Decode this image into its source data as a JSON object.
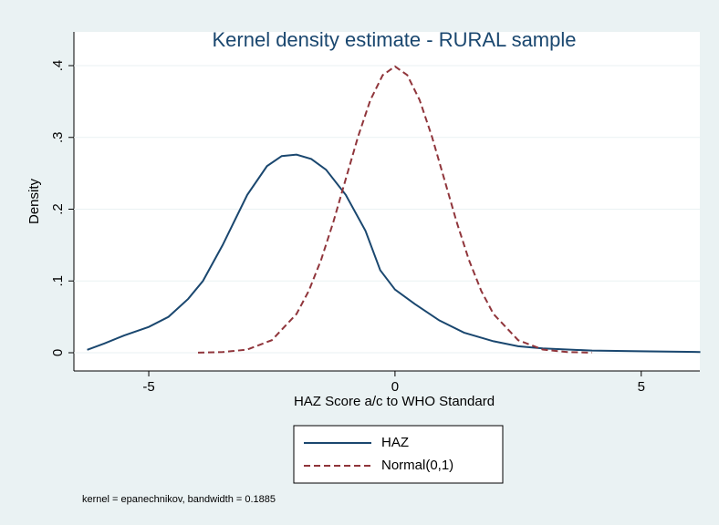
{
  "chart_data": {
    "type": "line",
    "title": "Kernel density estimate - RURAL sample",
    "x_label": "HAZ Score a/c to WHO Standard",
    "y_label": "Density",
    "note": "kernel = epanechnikov, bandwidth = 0.1885",
    "xlim": [
      -6.52,
      6.19
    ],
    "xticks": [
      -5,
      0,
      5
    ],
    "ylim": [
      -0.0254,
      0.447
    ],
    "yticks": [
      0,
      {
        "value": 0.1,
        "label": ".1"
      },
      {
        "value": 0.2,
        "label": ".2"
      },
      {
        "value": 0.3,
        "label": ".3"
      },
      {
        "value": 0.4,
        "label": ".4"
      }
    ],
    "grid": true,
    "legend": "bottom",
    "series": [
      {
        "name": "HAZ",
        "color": "#1a476f",
        "dash": "solid",
        "x": [
          -6.25,
          -5.9,
          -5.5,
          -5,
          -4.6,
          -4.2,
          -3.9,
          -3.5,
          -3.0,
          -2.6,
          -2.3,
          -2.0,
          -1.7,
          -1.4,
          -1.0,
          -0.6,
          -0.3,
          0,
          0.4,
          0.9,
          1.4,
          2.0,
          2.5,
          3.0,
          4.0,
          5.0,
          6.2
        ],
        "values": [
          0.004,
          0.013,
          0.024,
          0.036,
          0.05,
          0.075,
          0.1,
          0.15,
          0.22,
          0.26,
          0.274,
          0.276,
          0.27,
          0.255,
          0.22,
          0.17,
          0.115,
          0.088,
          0.068,
          0.045,
          0.028,
          0.016,
          0.009,
          0.006,
          0.003,
          0.002,
          0.001
        ]
      },
      {
        "name": "Normal(0,1)",
        "color": "#90353b",
        "dash": "dashed",
        "x": [
          -4,
          -3.5,
          -3,
          -2.5,
          -2,
          -1.75,
          -1.5,
          -1.25,
          -1,
          -0.75,
          -0.5,
          -0.25,
          0,
          0.25,
          0.5,
          0.75,
          1,
          1.25,
          1.5,
          1.75,
          2,
          2.5,
          3,
          3.5,
          4
        ],
        "values": [
          0.0001,
          0.0009,
          0.0044,
          0.0175,
          0.054,
          0.0863,
          0.1295,
          0.1826,
          0.242,
          0.3011,
          0.3521,
          0.3867,
          0.3989,
          0.3867,
          0.3521,
          0.3011,
          0.242,
          0.1826,
          0.1295,
          0.0863,
          0.054,
          0.0175,
          0.0044,
          0.0009,
          0.0001
        ]
      }
    ]
  }
}
